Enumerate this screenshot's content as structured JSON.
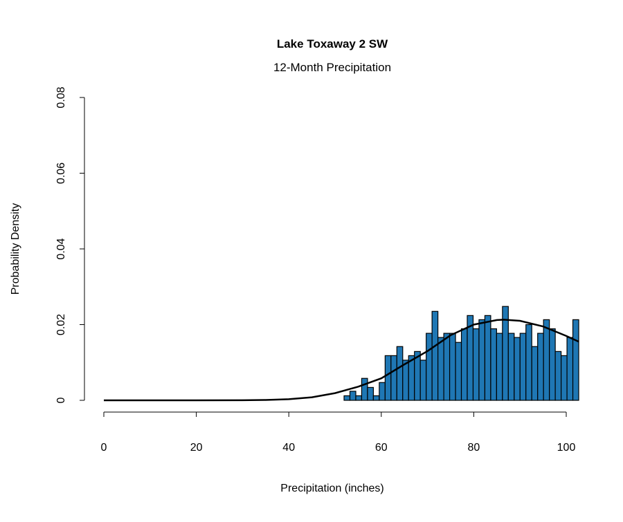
{
  "chart_data": {
    "type": "bar",
    "title": "Lake Toxaway 2 SW",
    "subtitle": "12-Month Precipitation",
    "xlabel": "Precipitation (inches)",
    "ylabel": "Probability Density",
    "xlim": [
      0,
      100
    ],
    "ylim": [
      0,
      0.08
    ],
    "xticks": [
      0,
      20,
      40,
      60,
      80,
      100
    ],
    "xtick_labels": [
      "0",
      "20",
      "40",
      "60",
      "80",
      "100"
    ],
    "yticks": [
      0,
      0.02,
      0.04,
      0.06,
      0.08
    ],
    "ytick_labels": [
      "0",
      "0.02",
      "0.04",
      "0.06",
      "0.08"
    ],
    "grid": false,
    "bar_color": "#1f77b4",
    "histogram": {
      "bin_start": 51.95,
      "bin_end": 102.7,
      "densities": [
        0.0012,
        0.0024,
        0.0012,
        0.0058,
        0.0034,
        0.0012,
        0.0047,
        0.0118,
        0.0118,
        0.0142,
        0.0106,
        0.0118,
        0.0129,
        0.0106,
        0.0177,
        0.0235,
        0.0166,
        0.0177,
        0.0177,
        0.0153,
        0.0189,
        0.0224,
        0.0189,
        0.0213,
        0.0224,
        0.0189,
        0.0177,
        0.0248,
        0.0177,
        0.0166,
        0.0177,
        0.02,
        0.0142,
        0.0177,
        0.0213,
        0.0189,
        0.0129,
        0.0118,
        0.0166,
        0.0213
      ]
    },
    "fitted_curve": {
      "x": [
        0,
        20,
        30,
        35,
        40,
        45,
        50,
        55,
        60,
        65,
        70,
        75,
        80,
        85,
        86.5,
        90,
        95,
        100,
        102.7
      ],
      "y": [
        0,
        0,
        2e-05,
        0.0001,
        0.0003,
        0.0008,
        0.0019,
        0.0036,
        0.0058,
        0.0095,
        0.013,
        0.0172,
        0.02,
        0.0212,
        0.0213,
        0.021,
        0.0195,
        0.017,
        0.0155
      ]
    }
  }
}
